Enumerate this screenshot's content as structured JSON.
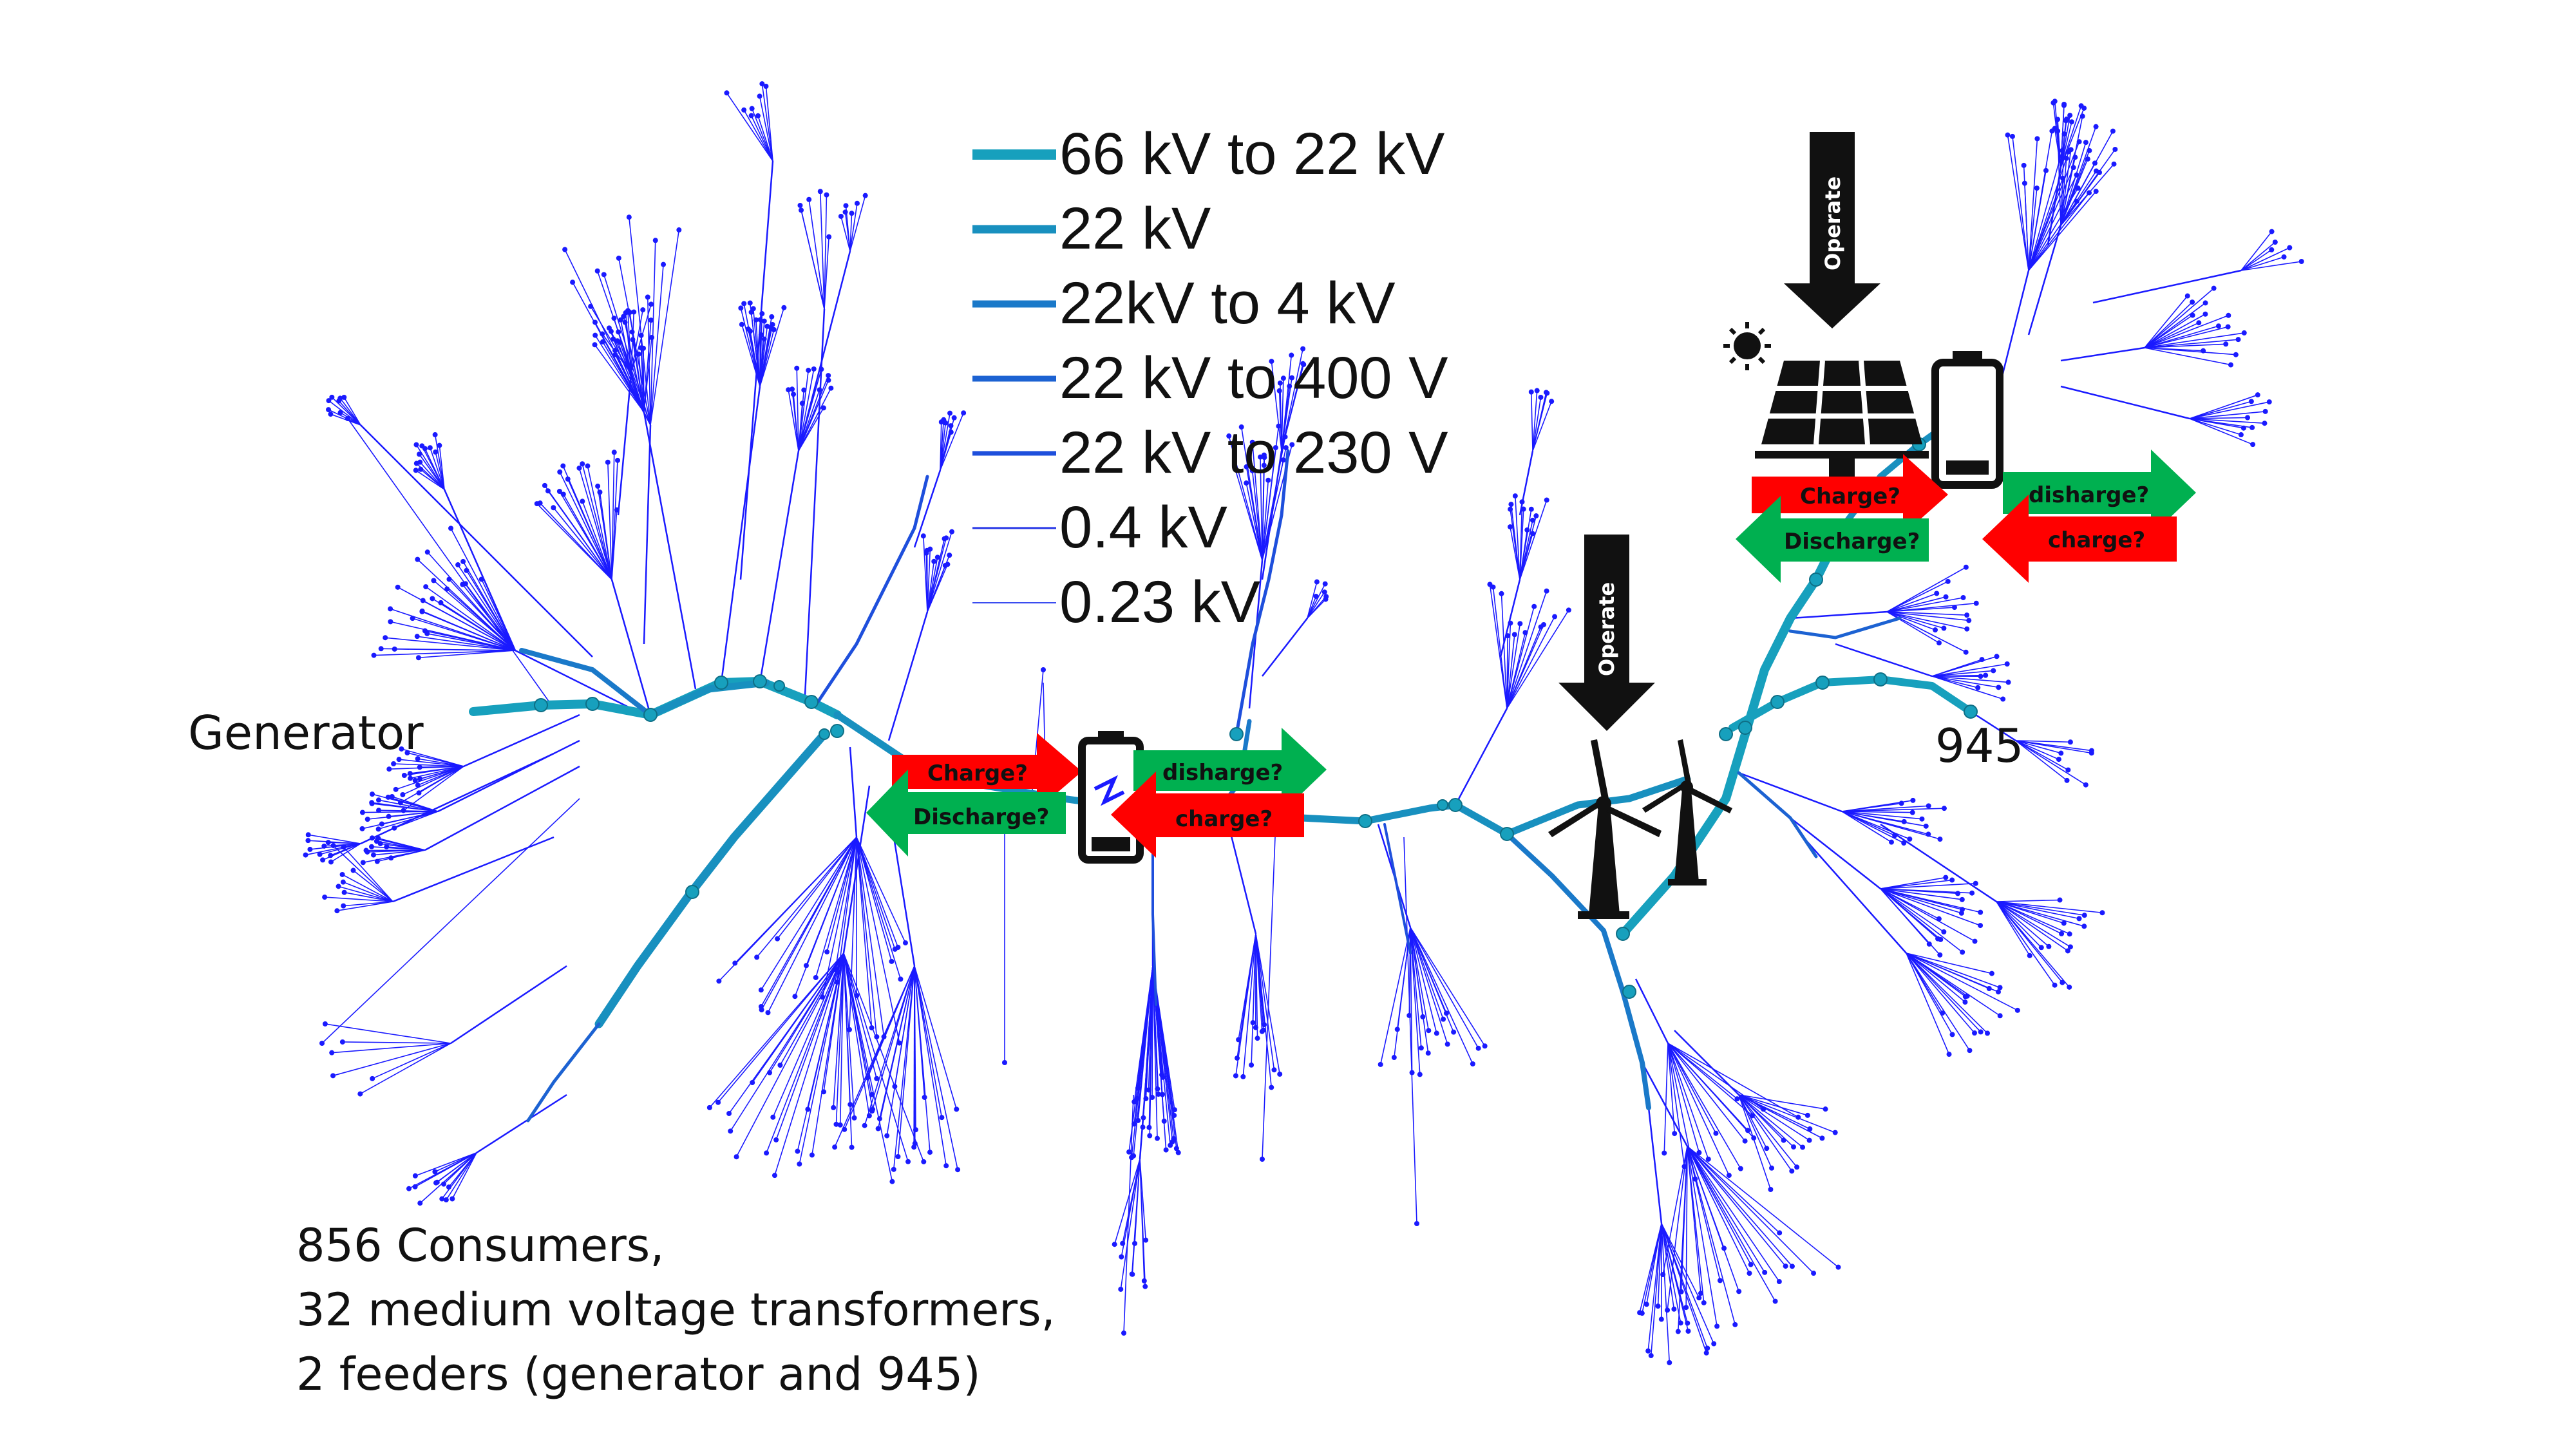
{
  "legend": {
    "items": [
      {
        "label": "66 kV to 22 kV",
        "color": "#17a0bd",
        "width": 16
      },
      {
        "label": "22 kV",
        "color": "#1890bf",
        "width": 13
      },
      {
        "label": "22kV to 4 kV",
        "color": "#1a79c9",
        "width": 11
      },
      {
        "label": "22 kV to 400 V",
        "color": "#1c62d2",
        "width": 9
      },
      {
        "label": "22 kV to 230 V",
        "color": "#1e4fdc",
        "width": 7
      },
      {
        "label": "0.4 kV",
        "color": "#2435e6",
        "width": 3
      },
      {
        "label": "0.23 kV",
        "color": "#3a4cf0",
        "width": 2
      }
    ]
  },
  "labels": {
    "generator": "Generator",
    "feeder_945": "945"
  },
  "arrows": {
    "charge": "Charge?",
    "discharge": "Discharge?",
    "disharge_lower": "disharge?",
    "charge_lower": "charge?"
  },
  "operate": "Operate",
  "info": {
    "line1": "856 Consumers,",
    "line2": "32 medium voltage transformers,",
    "line3": "2 feeders (generator and 945)"
  },
  "colors": {
    "charge_red": "#ff0000",
    "discharge_green": "#00b050",
    "lv_blue": "#1a1aff",
    "mv_teal": "#1890bf"
  }
}
